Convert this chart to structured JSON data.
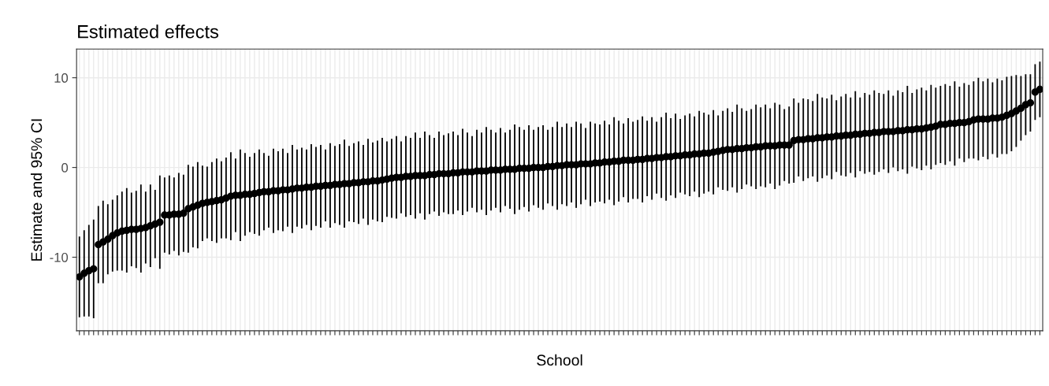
{
  "chart_data": {
    "type": "scatter",
    "title": "Estimated effects",
    "xlabel": "School",
    "ylabel": "Estimate and 95% CI",
    "categories": [
      null,
      null,
      null,
      null,
      null,
      null,
      null,
      null,
      null,
      null,
      null,
      null,
      null,
      null,
      null,
      null,
      null,
      null,
      null,
      null,
      null,
      null,
      null,
      null,
      null,
      null,
      null,
      null,
      null,
      null,
      null,
      null,
      null,
      null,
      null,
      null,
      null,
      null,
      null,
      null,
      null,
      null,
      null,
      null,
      null,
      null,
      null,
      null,
      null,
      null,
      null,
      null,
      null,
      null,
      null,
      null,
      null,
      null,
      null,
      null,
      null,
      null,
      null,
      null,
      null,
      null,
      null,
      null,
      null,
      null,
      null,
      null,
      null,
      null,
      null,
      null,
      null,
      null,
      null,
      null,
      null,
      null,
      null,
      null,
      null,
      null,
      null,
      null,
      null,
      null,
      null,
      null,
      null,
      null,
      null,
      null,
      null,
      null,
      null,
      null,
      null,
      null,
      null,
      null,
      null,
      null,
      null,
      null,
      null,
      null,
      null,
      null,
      null,
      null,
      null,
      null,
      null,
      null,
      null,
      null,
      null,
      null,
      null,
      null,
      null,
      null,
      null,
      null,
      null,
      null,
      null,
      null,
      null,
      null,
      null,
      null,
      null,
      null,
      null,
      null,
      null,
      null,
      null,
      null,
      null,
      null,
      null,
      null,
      null,
      null,
      null,
      null,
      null,
      null,
      null,
      null,
      null,
      null,
      null,
      null,
      null,
      null,
      null,
      null,
      null,
      null,
      null,
      null,
      null,
      null,
      null,
      null,
      null,
      null,
      null,
      null,
      null,
      null,
      null,
      null,
      null,
      null,
      null,
      null,
      null,
      null,
      null,
      null,
      null,
      null,
      null,
      null,
      null,
      null,
      null,
      null,
      null,
      null,
      null,
      null,
      null,
      null,
      null,
      null
    ],
    "values": [
      -12.2,
      -11.8,
      -11.5,
      -11.3,
      -8.6,
      -8.3,
      -8.0,
      -7.6,
      -7.3,
      -7.1,
      -7.0,
      -6.9,
      -6.9,
      -6.8,
      -6.7,
      -6.5,
      -6.3,
      -6.1,
      -5.3,
      -5.3,
      -5.2,
      -5.2,
      -5.1,
      -4.6,
      -4.4,
      -4.2,
      -4.0,
      -3.9,
      -3.8,
      -3.7,
      -3.6,
      -3.4,
      -3.2,
      -3.1,
      -3.1,
      -3.0,
      -3.0,
      -2.9,
      -2.8,
      -2.7,
      -2.7,
      -2.6,
      -2.6,
      -2.5,
      -2.5,
      -2.4,
      -2.3,
      -2.3,
      -2.2,
      -2.2,
      -2.1,
      -2.1,
      -2.0,
      -2.0,
      -1.9,
      -1.9,
      -1.8,
      -1.8,
      -1.7,
      -1.7,
      -1.6,
      -1.6,
      -1.5,
      -1.5,
      -1.4,
      -1.3,
      -1.2,
      -1.1,
      -1.1,
      -1.0,
      -1.0,
      -0.9,
      -0.9,
      -0.9,
      -0.8,
      -0.8,
      -0.7,
      -0.7,
      -0.7,
      -0.6,
      -0.6,
      -0.5,
      -0.5,
      -0.5,
      -0.4,
      -0.4,
      -0.4,
      -0.3,
      -0.3,
      -0.3,
      -0.2,
      -0.2,
      -0.2,
      -0.1,
      -0.1,
      -0.1,
      0.0,
      0.0,
      0.0,
      0.1,
      0.1,
      0.2,
      0.2,
      0.3,
      0.3,
      0.3,
      0.4,
      0.4,
      0.4,
      0.5,
      0.5,
      0.6,
      0.6,
      0.7,
      0.7,
      0.8,
      0.8,
      0.8,
      0.9,
      0.9,
      1.0,
      1.0,
      1.1,
      1.1,
      1.2,
      1.2,
      1.3,
      1.3,
      1.4,
      1.4,
      1.5,
      1.5,
      1.6,
      1.6,
      1.7,
      1.8,
      1.9,
      2.0,
      2.0,
      2.1,
      2.1,
      2.2,
      2.2,
      2.3,
      2.3,
      2.4,
      2.4,
      2.4,
      2.5,
      2.5,
      2.5,
      3.0,
      3.1,
      3.1,
      3.2,
      3.2,
      3.3,
      3.3,
      3.4,
      3.4,
      3.5,
      3.5,
      3.6,
      3.6,
      3.7,
      3.7,
      3.8,
      3.8,
      3.9,
      3.9,
      4.0,
      4.0,
      4.0,
      4.1,
      4.1,
      4.2,
      4.2,
      4.3,
      4.3,
      4.4,
      4.5,
      4.6,
      4.8,
      4.8,
      4.9,
      4.9,
      5.0,
      5.0,
      5.1,
      5.3,
      5.4,
      5.4,
      5.4,
      5.5,
      5.5,
      5.6,
      5.8,
      6.0,
      6.3,
      6.6,
      7.0,
      7.2,
      8.4,
      8.7
    ],
    "errors": [
      4.5,
      4.8,
      5.1,
      5.5,
      4.3,
      4.6,
      3.9,
      4.0,
      4.2,
      4.4,
      4.7,
      4.1,
      4.3,
      4.9,
      4.0,
      4.6,
      3.8,
      5.2,
      4.2,
      4.4,
      4.1,
      4.6,
      4.3,
      4.9,
      4.5,
      4.8,
      4.2,
      4.0,
      4.4,
      4.7,
      4.3,
      4.5,
      4.9,
      4.1,
      5.1,
      4.6,
      4.2,
      4.5,
      4.8,
      4.3,
      4.0,
      4.7,
      4.4,
      4.6,
      4.1,
      4.9,
      4.3,
      4.5,
      4.2,
      4.8,
      4.4,
      4.6,
      4.0,
      4.7,
      4.3,
      4.5,
      4.9,
      4.2,
      4.4,
      4.6,
      4.1,
      4.8,
      4.3,
      4.5,
      4.7,
      4.2,
      4.4,
      4.6,
      4.0,
      4.5,
      4.3,
      4.8,
      4.2,
      4.9,
      4.4,
      4.1,
      4.7,
      4.3,
      4.5,
      4.6,
      4.2,
      4.8,
      4.4,
      4.0,
      4.6,
      4.3,
      4.9,
      4.5,
      4.2,
      4.7,
      4.1,
      4.4,
      5.0,
      4.6,
      4.3,
      4.8,
      4.2,
      4.5,
      4.7,
      4.1,
      4.4,
      4.9,
      4.3,
      4.6,
      4.2,
      4.8,
      4.5,
      4.0,
      4.7,
      4.4,
      4.3,
      4.6,
      4.2,
      4.9,
      4.5,
      4.1,
      4.7,
      4.3,
      4.4,
      4.8,
      4.2,
      4.6,
      4.0,
      4.5,
      4.9,
      4.3,
      4.7,
      4.1,
      4.4,
      4.6,
      4.2,
      4.8,
      4.5,
      4.3,
      4.7,
      4.0,
      4.4,
      4.6,
      4.2,
      4.9,
      4.5,
      4.1,
      4.3,
      4.7,
      4.4,
      4.6,
      4.2,
      4.8,
      4.5,
      4.0,
      4.3,
      4.7,
      4.1,
      4.6,
      4.4,
      4.2,
      4.9,
      4.5,
      4.3,
      4.7,
      4.0,
      4.4,
      4.6,
      4.2,
      4.8,
      4.1,
      4.5,
      4.3,
      4.7,
      4.4,
      4.2,
      4.6,
      4.0,
      4.5,
      4.3,
      4.9,
      4.1,
      4.4,
      4.6,
      4.2,
      4.7,
      4.3,
      4.3,
      4.5,
      4.2,
      4.7,
      4.0,
      4.4,
      4.1,
      4.3,
      4.6,
      4.2,
      4.5,
      4.0,
      4.4,
      4.1,
      4.3,
      4.2,
      4.0,
      3.6,
      3.4,
      3.2,
      3.1,
      3.1
    ],
    "color": "#000000",
    "marker": "circle",
    "ylim": [
      -18.2,
      13.2
    ],
    "yticks": [
      -10,
      0,
      10
    ],
    "grid": true
  }
}
